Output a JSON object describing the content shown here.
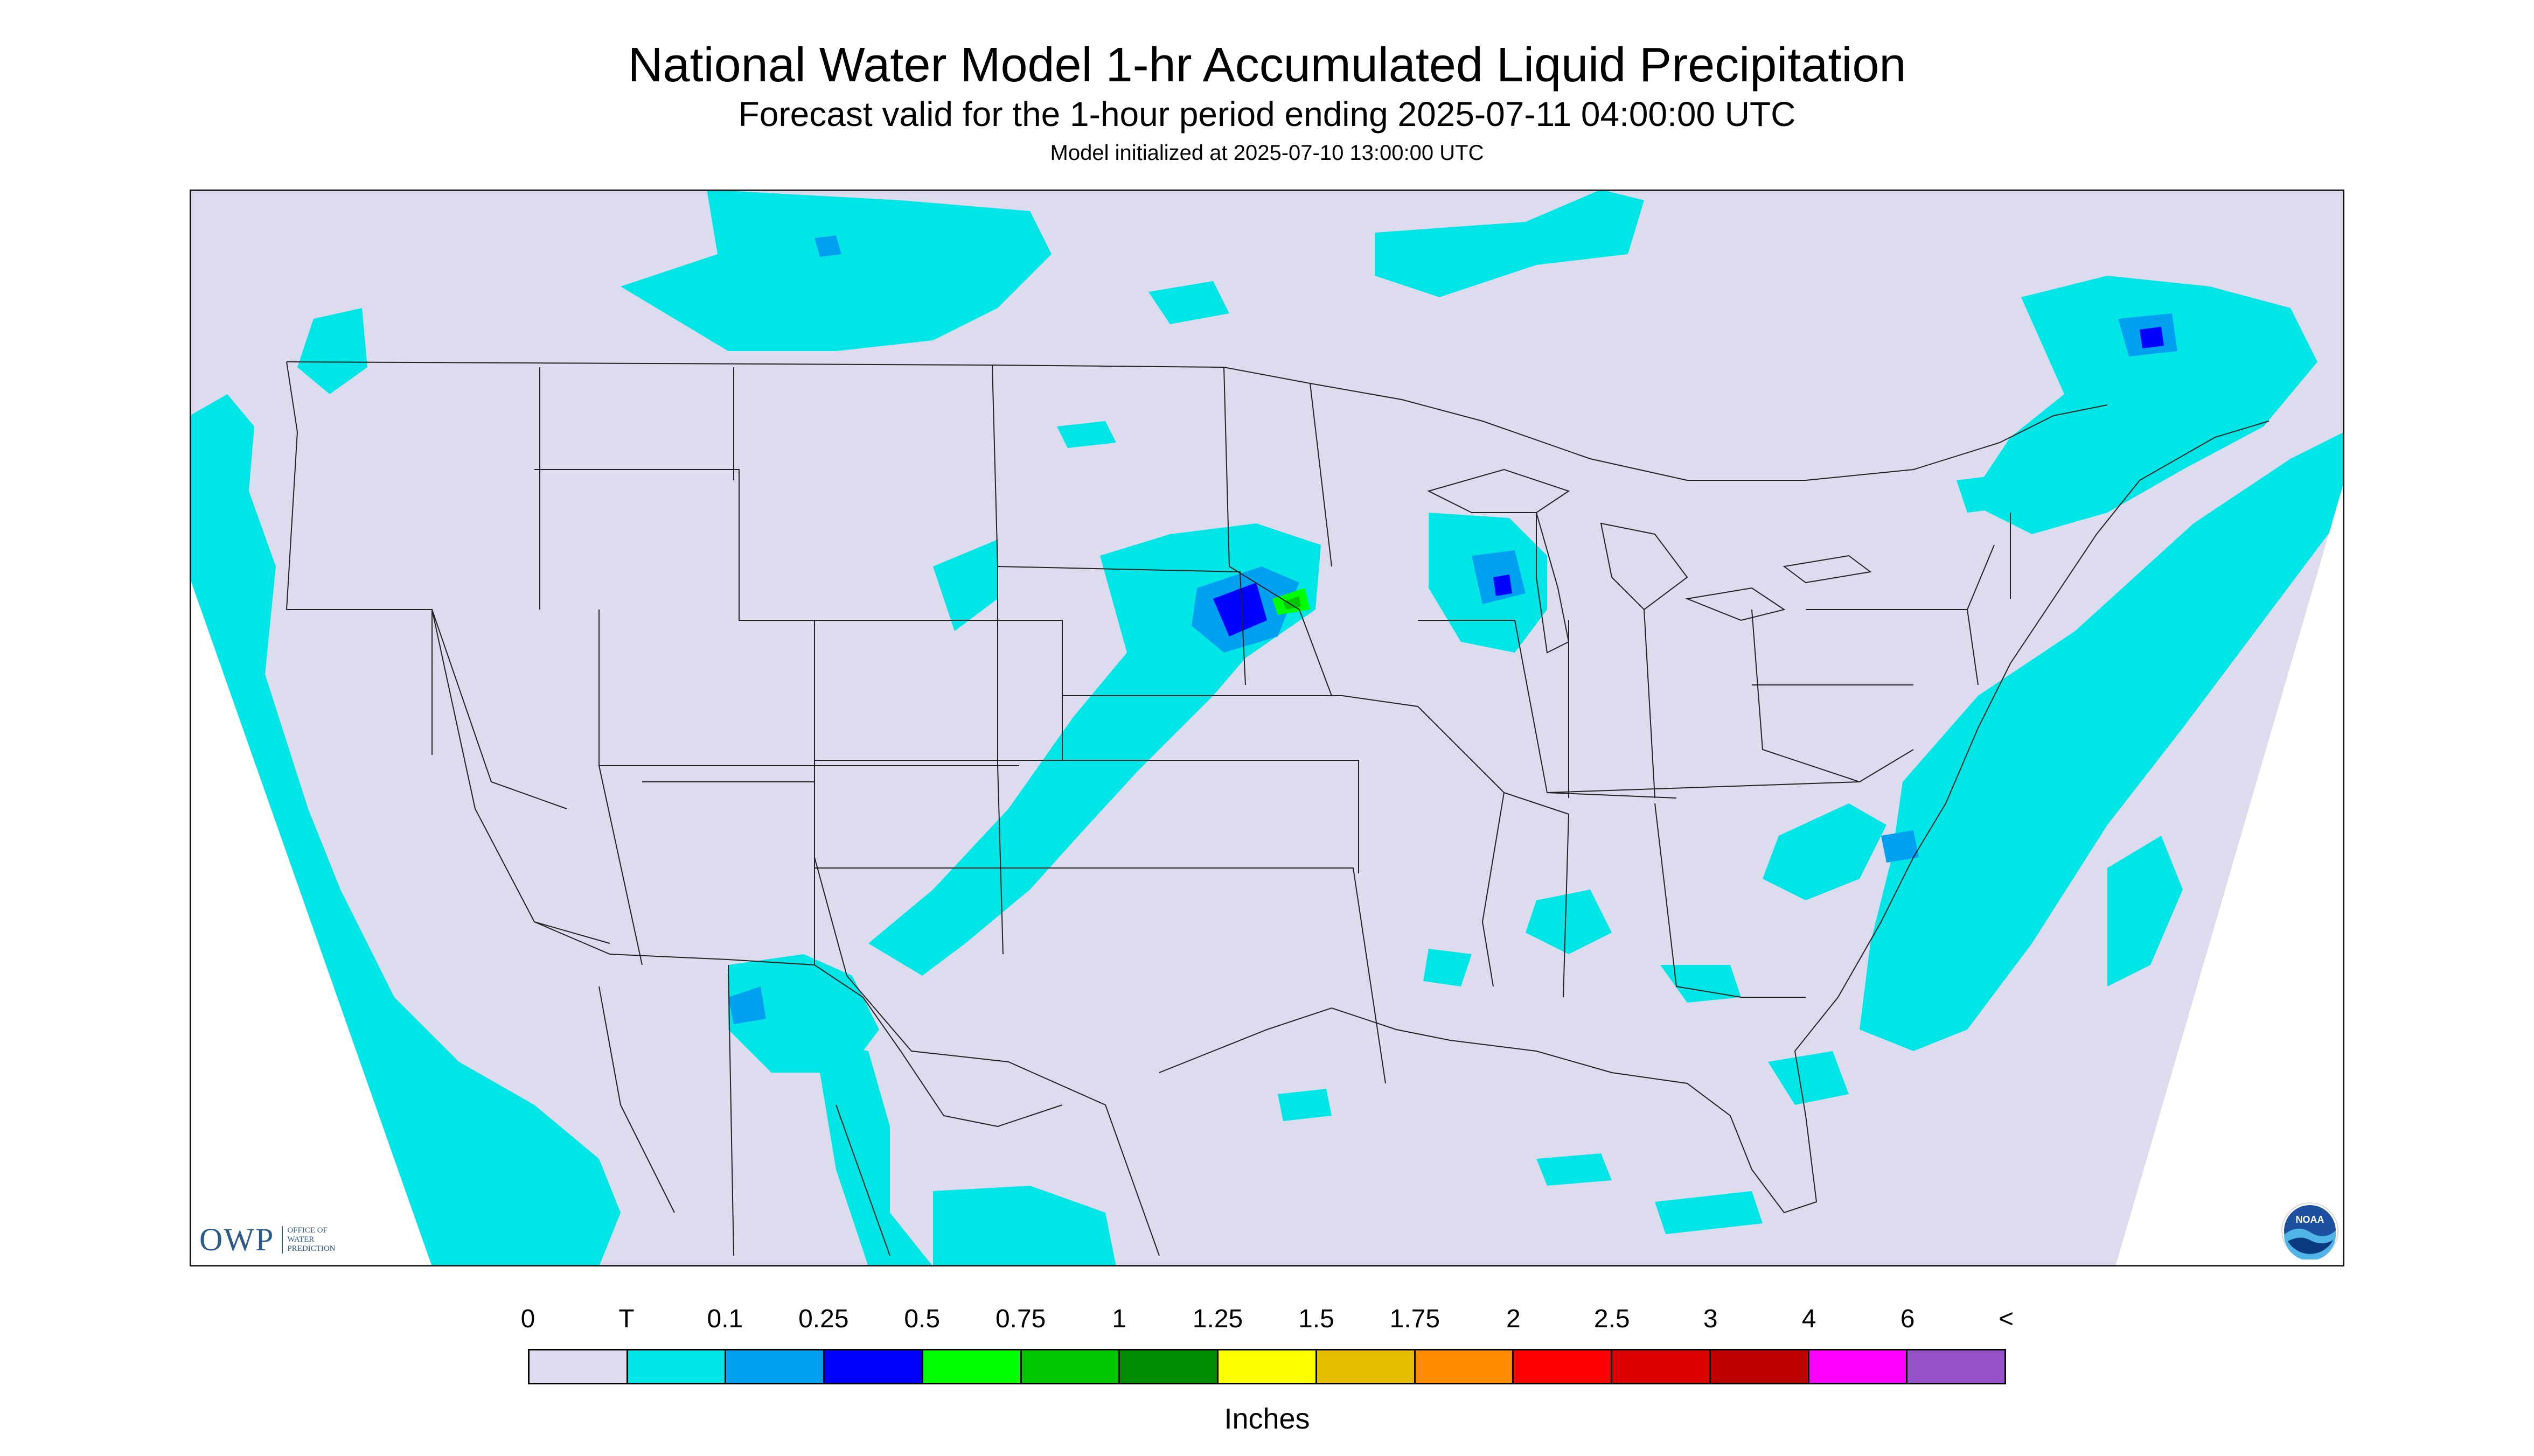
{
  "header": {
    "title": "National Water Model 1-hr Accumulated Liquid Precipitation",
    "subtitle": "Forecast valid for the 1-hour period ending 2025-07-11 04:00:00 UTC",
    "init": "Model initialized at 2025-07-10 13:00:00 UTC"
  },
  "colors": {
    "map_background": "#dcdcee",
    "outside_projection": "#ffffff",
    "boundary_lines": "#222222"
  },
  "legend": {
    "labels": [
      "0",
      "T",
      "0.1",
      "0.25",
      "0.5",
      "0.75",
      "1",
      "1.25",
      "1.5",
      "1.75",
      "2",
      "2.5",
      "3",
      "4",
      "6",
      "<"
    ],
    "colors": [
      "#dcdcee",
      "#00e6e6",
      "#00a0f0",
      "#0000ff",
      "#00ff00",
      "#00c800",
      "#008c00",
      "#ffff00",
      "#e6be00",
      "#ff8c00",
      "#ff0000",
      "#dc0000",
      "#bc0000",
      "#ff00ff",
      "#9650c8"
    ],
    "units": "Inches"
  },
  "logos": {
    "owp_mark": "OWP",
    "owp_lines": [
      "OFFICE OF",
      "WATER",
      "PREDICTION"
    ],
    "noaa_text": "NOAA"
  }
}
